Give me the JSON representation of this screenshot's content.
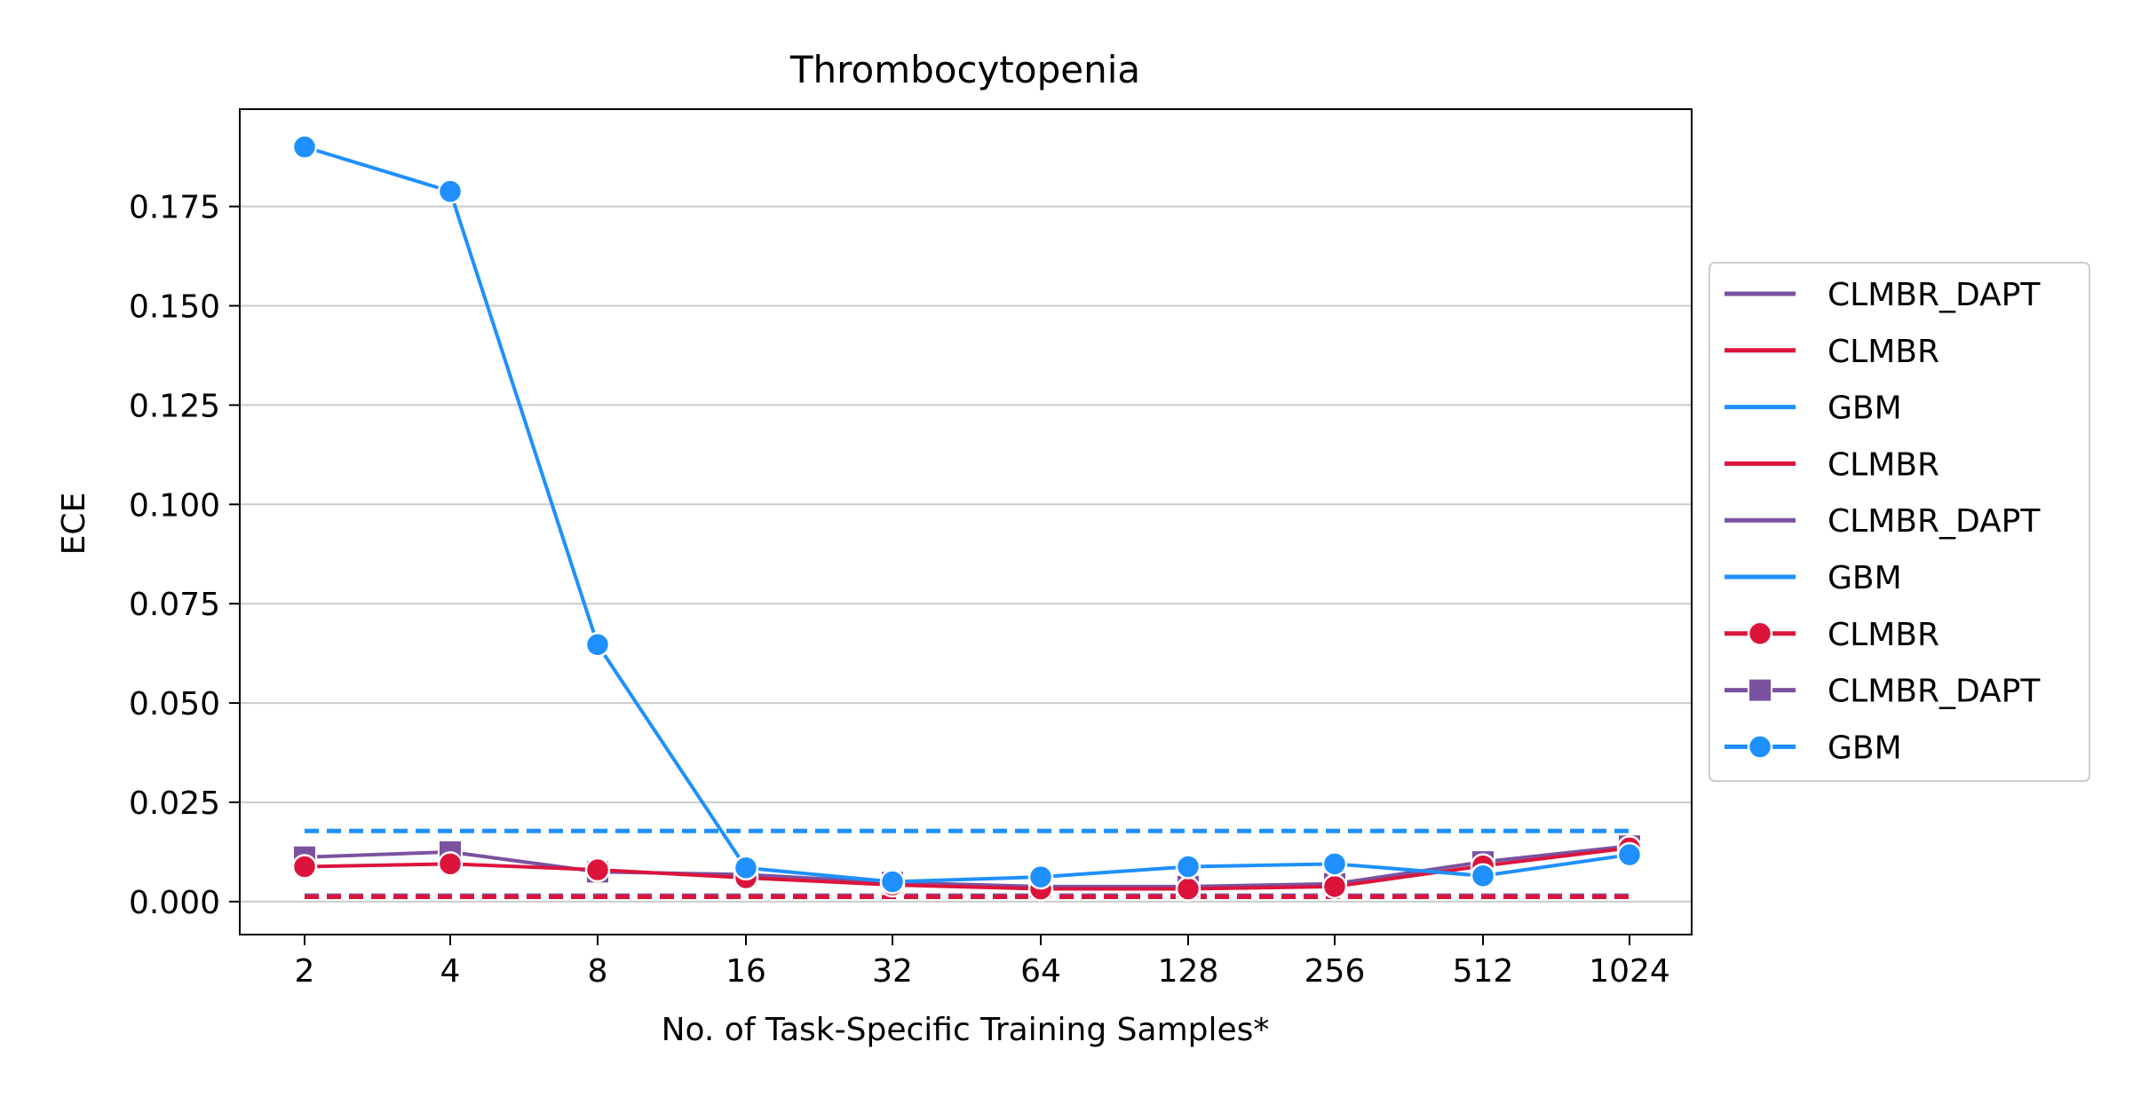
{
  "chart_data": {
    "type": "line",
    "title": "Thrombocytopenia",
    "xlabel": "No. of Task-Specific Training Samples*",
    "ylabel": "ECE",
    "x": [
      2,
      4,
      8,
      16,
      32,
      64,
      128,
      256,
      512,
      1024
    ],
    "x_tick_labels": [
      "2",
      "4",
      "8",
      "16",
      "32",
      "64",
      "128",
      "256",
      "512",
      "1024"
    ],
    "y_ticks": [
      0.0,
      0.025,
      0.05,
      0.075,
      0.1,
      0.125,
      0.15,
      0.175
    ],
    "y_tick_labels": [
      "0.000",
      "0.025",
      "0.050",
      "0.075",
      "0.100",
      "0.125",
      "0.150",
      "0.175"
    ],
    "ylim": [
      -0.0083,
      0.1995
    ],
    "grid": "horizontal",
    "legend_position": "right-outside",
    "colors": {
      "CLMBR": "#dc143c",
      "CLMBR_DAPT": "#7b52a0",
      "GBM": "#1e90ff"
    },
    "legend": [
      {
        "label": "CLMBR_DAPT",
        "color": "#7b52a0",
        "marker": "none"
      },
      {
        "label": "CLMBR",
        "color": "#dc143c",
        "marker": "none"
      },
      {
        "label": "GBM",
        "color": "#1e90ff",
        "marker": "none"
      },
      {
        "label": "CLMBR",
        "color": "#dc143c",
        "marker": "none"
      },
      {
        "label": "CLMBR_DAPT",
        "color": "#7b52a0",
        "marker": "none"
      },
      {
        "label": "GBM",
        "color": "#1e90ff",
        "marker": "none"
      },
      {
        "label": "CLMBR",
        "color": "#dc143c",
        "marker": "circle"
      },
      {
        "label": "CLMBR_DAPT",
        "color": "#7b52a0",
        "marker": "square"
      },
      {
        "label": "GBM",
        "color": "#1e90ff",
        "marker": "circle"
      }
    ],
    "baselines": [
      {
        "name": "GBM",
        "color": "#1e90ff",
        "value": 0.0178
      },
      {
        "name": "CLMBR_DAPT",
        "color": "#7b52a0",
        "value": 0.0015
      },
      {
        "name": "CLMBR",
        "color": "#dc143c",
        "value": 0.0012
      }
    ],
    "series": [
      {
        "name": "CLMBR_DAPT",
        "color": "#7b52a0",
        "marker": "square",
        "values": [
          0.0112,
          0.0125,
          0.0075,
          0.0068,
          0.0048,
          0.0038,
          0.0038,
          0.0045,
          0.01,
          0.014
        ]
      },
      {
        "name": "CLMBR",
        "color": "#dc143c",
        "marker": "circle",
        "values": [
          0.0088,
          0.0095,
          0.008,
          0.006,
          0.0042,
          0.0032,
          0.0032,
          0.0038,
          0.009,
          0.0135
        ]
      },
      {
        "name": "GBM",
        "color": "#1e90ff",
        "marker": "circle",
        "values": [
          0.19,
          0.1788,
          0.0647,
          0.0085,
          0.005,
          0.0062,
          0.0088,
          0.0095,
          0.0065,
          0.0118
        ]
      }
    ]
  }
}
